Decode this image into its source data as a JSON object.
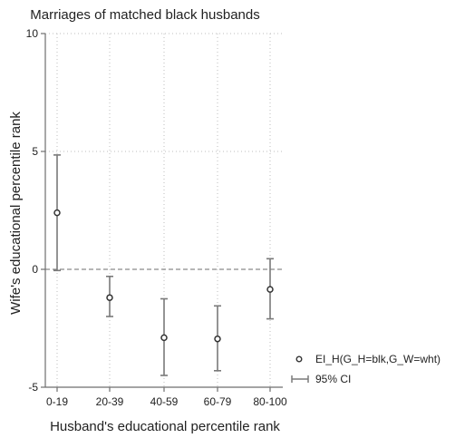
{
  "chart_data": {
    "type": "scatter",
    "title": "Marriages of matched black husbands",
    "xlabel": "Husband's educational percentile rank",
    "ylabel": "Wife's educational percentile rank",
    "categories": [
      "0-19",
      "20-39",
      "40-59",
      "60-79",
      "80-100"
    ],
    "ylim": [
      -5,
      10
    ],
    "yticks": [
      -5,
      0,
      5,
      10
    ],
    "yticklabels": [
      "-5",
      "0",
      "5",
      "10"
    ],
    "grid": true,
    "reference_line_y": 0,
    "legend_position": "right",
    "series": [
      {
        "name": "EI_H(G_H=blk,G_W=wht)",
        "values": [
          2.4,
          -1.2,
          -2.9,
          -2.95,
          -0.85
        ],
        "ci_low": [
          -0.05,
          -2.0,
          -4.5,
          -4.3,
          -2.1
        ],
        "ci_high": [
          4.85,
          -0.3,
          -1.25,
          -1.55,
          0.45
        ]
      }
    ],
    "legend": {
      "point_label": "EI_H(G_H=blk,G_W=wht)",
      "ci_label": "95% CI"
    },
    "colors": {
      "marker": "#333333",
      "errorbar": "#7a7a7a",
      "axis": "#6e6e6e",
      "grid": "#bdbdbd",
      "zero_line": "#8a8a8a"
    }
  }
}
